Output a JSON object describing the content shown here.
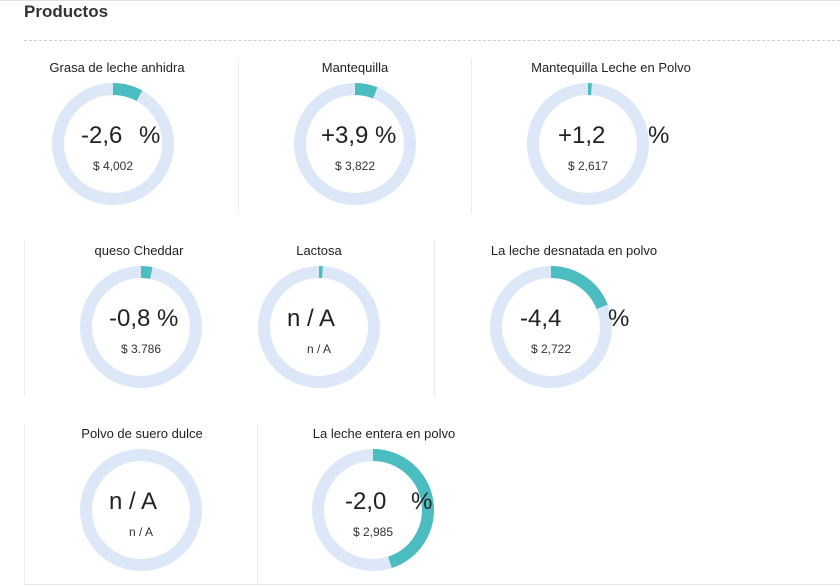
{
  "section": {
    "title": "Productos"
  },
  "colors": {
    "track": "#dce8f7",
    "progress": "#4bbcbf"
  },
  "cards": [
    {
      "title": "Grasa de leche anhidra",
      "value": "-2,6",
      "unit": "%",
      "price": "$ 4,002",
      "progress": 0.08
    },
    {
      "title": "Mantequilla",
      "value": "+3,9",
      "unit": "%",
      "price": "$ 3,822",
      "progress": 0.06
    },
    {
      "title": "Mantequilla Leche en Polvo",
      "value": "+1,2",
      "unit": "%",
      "price": "$ 2,617",
      "progress": 0.01
    },
    {
      "title": "queso Cheddar",
      "value": "-0,8",
      "unit": "%",
      "price": "$ 3.786",
      "progress": 0.03
    },
    {
      "title": "Lactosa",
      "value": "n / A",
      "unit": "",
      "price": "n / A",
      "progress": 0.01
    },
    {
      "title": "La leche desnatada en polvo",
      "value": "-4,4",
      "unit": "%",
      "price": "$ 2,722",
      "progress": 0.19
    },
    {
      "title": "Polvo de suero dulce",
      "value": "n / A",
      "unit": "",
      "price": "n / A",
      "progress": 0
    },
    {
      "title": "La leche entera en polvo",
      "value": "-2,0",
      "unit": "%",
      "price": "$ 2,985",
      "progress": 0.45
    }
  ]
}
